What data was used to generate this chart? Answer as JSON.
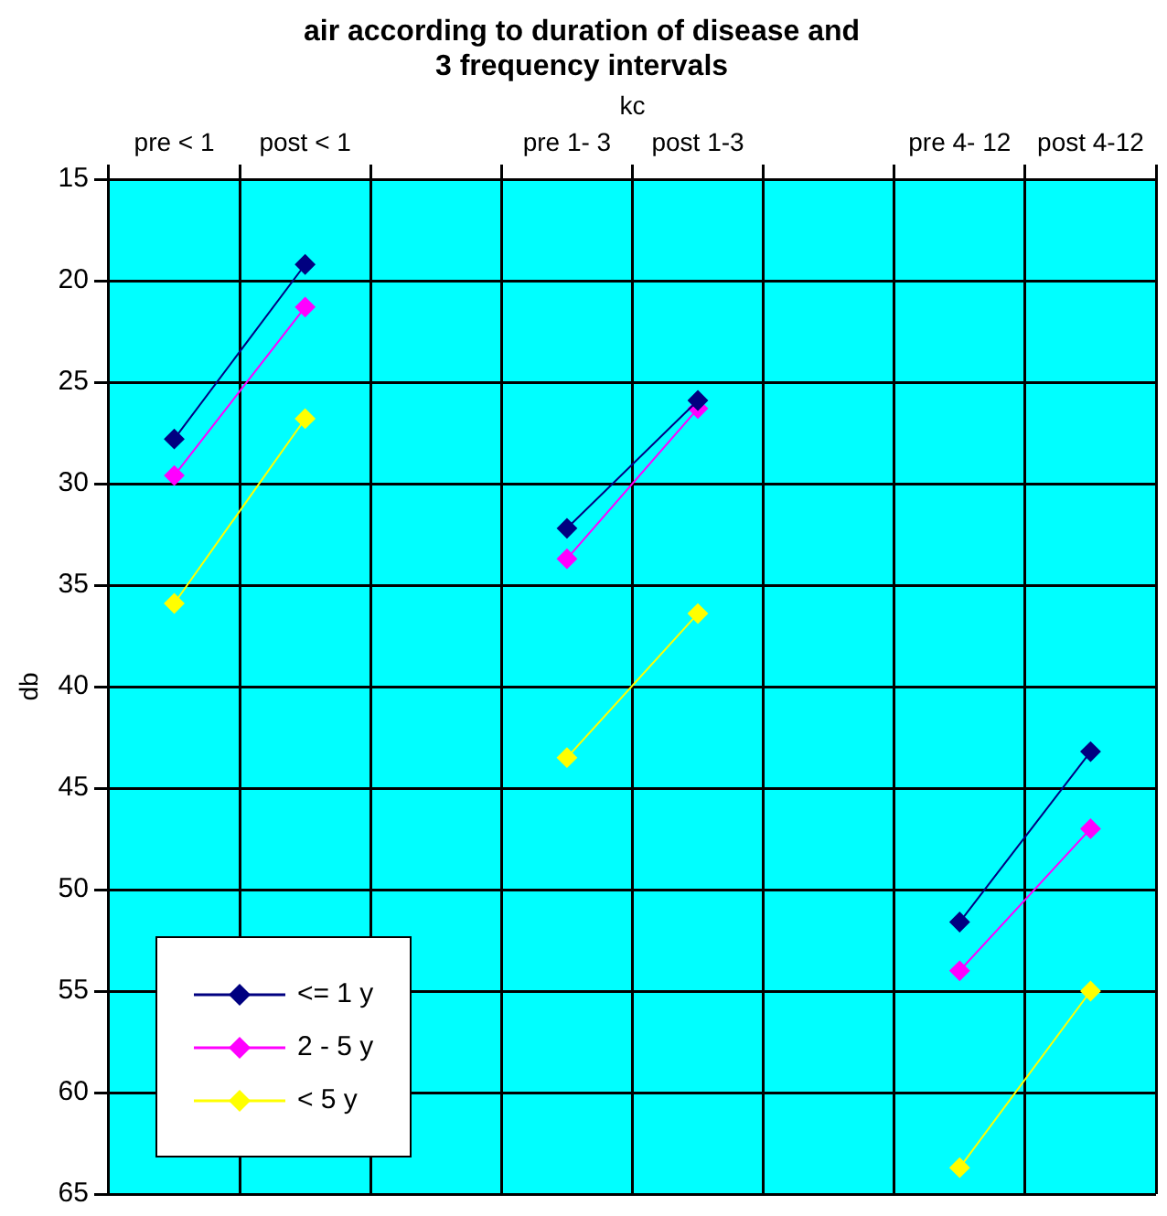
{
  "chart_data": {
    "type": "line",
    "title": "air according to duration of disease and 3 frequency intervals",
    "xlabel": "kc",
    "ylabel": "db",
    "categories": [
      "pre < 1",
      "post < 1",
      null,
      "pre 1- 3",
      "post 1-3",
      null,
      "pre 4- 12",
      "post 4-12"
    ],
    "series": [
      {
        "name": "<= 1 y",
        "color": "#000080",
        "values": [
          27.8,
          19.2,
          null,
          32.2,
          25.9,
          null,
          51.6,
          43.2
        ]
      },
      {
        "name": "2 - 5 y",
        "color": "#ff00ff",
        "values": [
          29.6,
          21.3,
          null,
          33.7,
          26.3,
          null,
          54.0,
          47.0
        ]
      },
      {
        "name": "< 5 y",
        "color": "#ffff00",
        "values": [
          35.9,
          26.8,
          null,
          43.5,
          36.4,
          null,
          63.7,
          55.0
        ]
      }
    ],
    "ylim": [
      65,
      15
    ],
    "yticks": [
      15,
      20,
      25,
      30,
      35,
      40,
      45,
      50,
      55,
      60,
      65
    ],
    "grid": true,
    "legend": "bottom left",
    "marker": "diamond",
    "line_style": "solid"
  }
}
